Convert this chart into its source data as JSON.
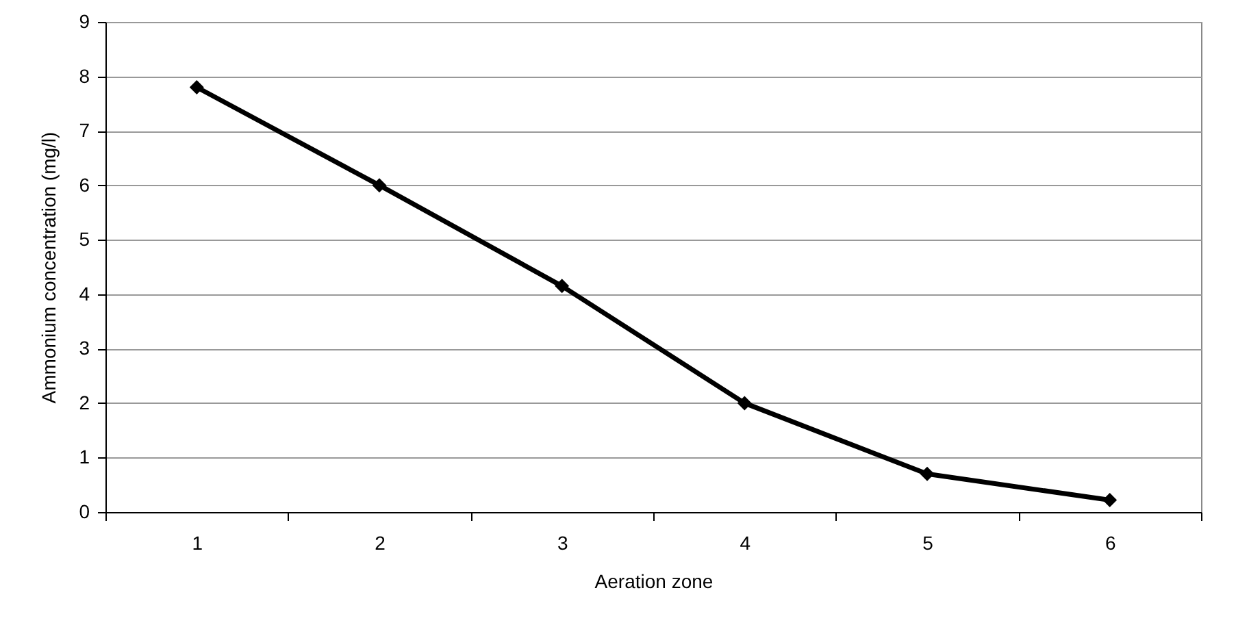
{
  "chart_data": {
    "type": "line",
    "xlabel": "Aeration zone",
    "ylabel": "Ammonium concentration (mg/l)",
    "categories": [
      "1",
      "2",
      "3",
      "4",
      "5",
      "6"
    ],
    "series": [
      {
        "color": "#000000",
        "values": [
          7.8,
          6.0,
          4.15,
          2.0,
          0.7,
          0.22
        ]
      }
    ],
    "ylim": [
      0,
      9
    ],
    "yticks": [
      0,
      1,
      2,
      3,
      4,
      5,
      6,
      7,
      8,
      9
    ],
    "grid": "y",
    "marker": "diamond",
    "line_style": "solid"
  }
}
